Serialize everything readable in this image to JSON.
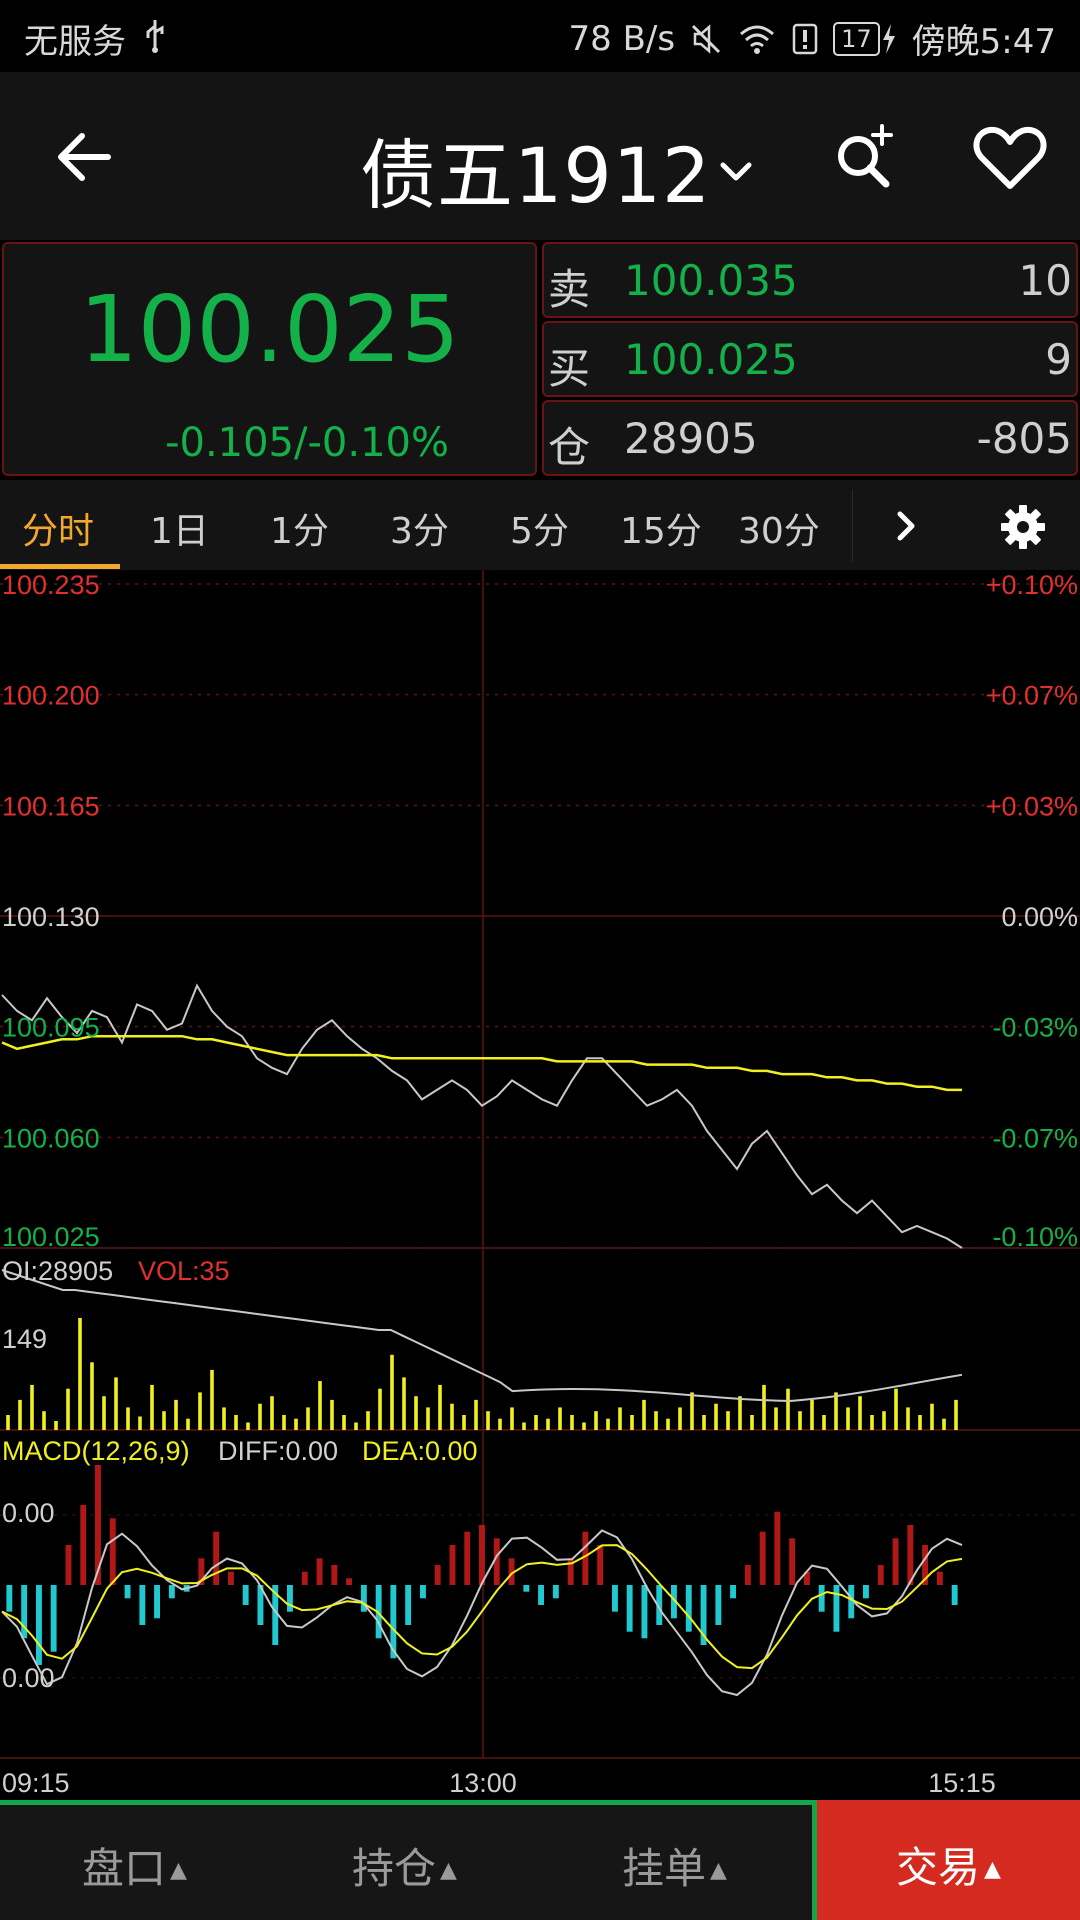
{
  "status_bar": {
    "carrier": "无服务",
    "net_speed": "78 B/s",
    "battery": "17",
    "time": "傍晚5:47",
    "icons": [
      "usb-icon",
      "mute-icon",
      "wifi-icon",
      "alert-icon",
      "battery-icon",
      "charging-icon"
    ]
  },
  "header": {
    "title": "债五1912",
    "icons": [
      "back-arrow-icon",
      "chevron-down-icon",
      "search-plus-icon",
      "heart-icon"
    ]
  },
  "quote": {
    "last_price": "100.025",
    "change": "-0.105/-0.10%"
  },
  "orderbook": {
    "rows": [
      {
        "label": "卖",
        "price": "100.035",
        "qty": "10"
      },
      {
        "label": "买",
        "price": "100.025",
        "qty": "9"
      },
      {
        "label": "仓",
        "price": "28905",
        "qty": "-805"
      }
    ]
  },
  "tabs": {
    "items": [
      "分时",
      "1日",
      "1分",
      "3分",
      "5分",
      "15分",
      "30分"
    ],
    "active": 0,
    "icons": [
      "chevron-right-icon",
      "gear-icon"
    ]
  },
  "colors": {
    "up": "#e03030",
    "down": "#14b14a",
    "avg_line": "#f0f020",
    "price_line": "#c8c8c8",
    "macd_neg": "#20c8d0",
    "accent": "#f0a830"
  },
  "chart_data": [
    {
      "type": "line",
      "title": "",
      "y_left_ticks": [
        "100.235",
        "100.200",
        "100.165",
        "100.130",
        "100.095",
        "100.060",
        "100.025"
      ],
      "y_right_ticks": [
        "+0.10%",
        "+0.07%",
        "+0.03%",
        "0.00%",
        "-0.03%",
        "-0.07%",
        "-0.10%"
      ],
      "x_ticks": [
        "09:15",
        "13:00",
        "15:15"
      ],
      "ylim": [
        100.025,
        100.235
      ],
      "series": [
        {
          "values": [
            100.105,
            100.1,
            100.097,
            100.104,
            100.098,
            100.093,
            100.1,
            100.098,
            100.09,
            100.102,
            100.1,
            100.094,
            100.096,
            100.108,
            100.1,
            100.095,
            100.092,
            100.085,
            100.082,
            100.08,
            100.088,
            100.094,
            100.097,
            100.092,
            100.088,
            100.085,
            100.081,
            100.078,
            100.072,
            100.075,
            100.078,
            100.075,
            100.07,
            100.073,
            100.078,
            100.075,
            100.072,
            100.07,
            100.078,
            100.085,
            100.085,
            100.08,
            100.075,
            100.07,
            100.072,
            100.075,
            100.07,
            100.062,
            100.056,
            100.05,
            100.058,
            100.062,
            100.055,
            100.048,
            100.042,
            100.045,
            100.04,
            100.036,
            100.04,
            100.035,
            100.03,
            100.032,
            100.03,
            100.028,
            100.025
          ],
          "note_index": "price"
        },
        {
          "values": [
            100.09,
            100.088,
            100.089,
            100.09,
            100.091,
            100.091,
            100.092,
            100.092,
            100.092,
            100.092,
            100.092,
            100.092,
            100.092,
            100.091,
            100.091,
            100.09,
            100.089,
            100.088,
            100.087,
            100.086,
            100.086,
            100.086,
            100.086,
            100.086,
            100.086,
            100.086,
            100.085,
            100.085,
            100.085,
            100.085,
            100.085,
            100.085,
            100.085,
            100.085,
            100.085,
            100.085,
            100.085,
            100.084,
            100.084,
            100.084,
            100.084,
            100.084,
            100.084,
            100.083,
            100.083,
            100.083,
            100.083,
            100.082,
            100.082,
            100.082,
            100.081,
            100.081,
            100.08,
            100.08,
            100.08,
            100.079,
            100.079,
            100.078,
            100.078,
            100.077,
            100.077,
            100.076,
            100.076,
            100.075,
            100.075
          ],
          "note_index": "avg"
        }
      ]
    },
    {
      "type": "bar",
      "labels": {
        "oi": "OI:28905",
        "vol": "VOL:35",
        "ymax": "149"
      },
      "values": [
        20,
        40,
        60,
        25,
        12,
        55,
        149,
        90,
        45,
        70,
        30,
        18,
        60,
        25,
        40,
        15,
        50,
        80,
        30,
        20,
        10,
        35,
        45,
        20,
        15,
        30,
        65,
        40,
        20,
        10,
        25,
        55,
        100,
        70,
        45,
        30,
        60,
        35,
        20,
        40,
        25,
        15,
        30,
        10,
        20,
        15,
        30,
        20,
        10,
        25,
        15,
        30,
        20,
        40,
        25,
        15,
        30,
        50,
        20,
        35,
        25,
        45,
        20,
        60,
        30,
        55,
        25,
        40,
        20,
        50,
        30,
        45,
        20,
        25,
        55,
        30,
        20,
        35,
        15,
        40
      ]
    },
    {
      "type": "bar",
      "labels": {
        "title": "MACD(12,26,9)",
        "diff": "DIFF:0.00",
        "dea": "DEA:0.00",
        "top": "0.00",
        "bottom": "0.00"
      },
      "values": [
        -20,
        -40,
        -60,
        -50,
        30,
        60,
        90,
        50,
        -10,
        -30,
        -25,
        -10,
        -5,
        20,
        40,
        10,
        -15,
        -30,
        -45,
        -20,
        10,
        20,
        15,
        5,
        -20,
        -40,
        -55,
        -30,
        -10,
        15,
        30,
        40,
        45,
        35,
        20,
        -5,
        -15,
        -10,
        20,
        40,
        30,
        -20,
        -35,
        -40,
        -30,
        -25,
        -35,
        -45,
        -30,
        -10,
        15,
        40,
        55,
        35,
        10,
        -20,
        -35,
        -25,
        -10,
        15,
        35,
        45,
        30,
        10,
        -15
      ]
    }
  ],
  "bottom_bar": {
    "tabs": [
      "盘口",
      "持仓",
      "挂单"
    ],
    "trade": "交易",
    "arrow": "▲"
  }
}
